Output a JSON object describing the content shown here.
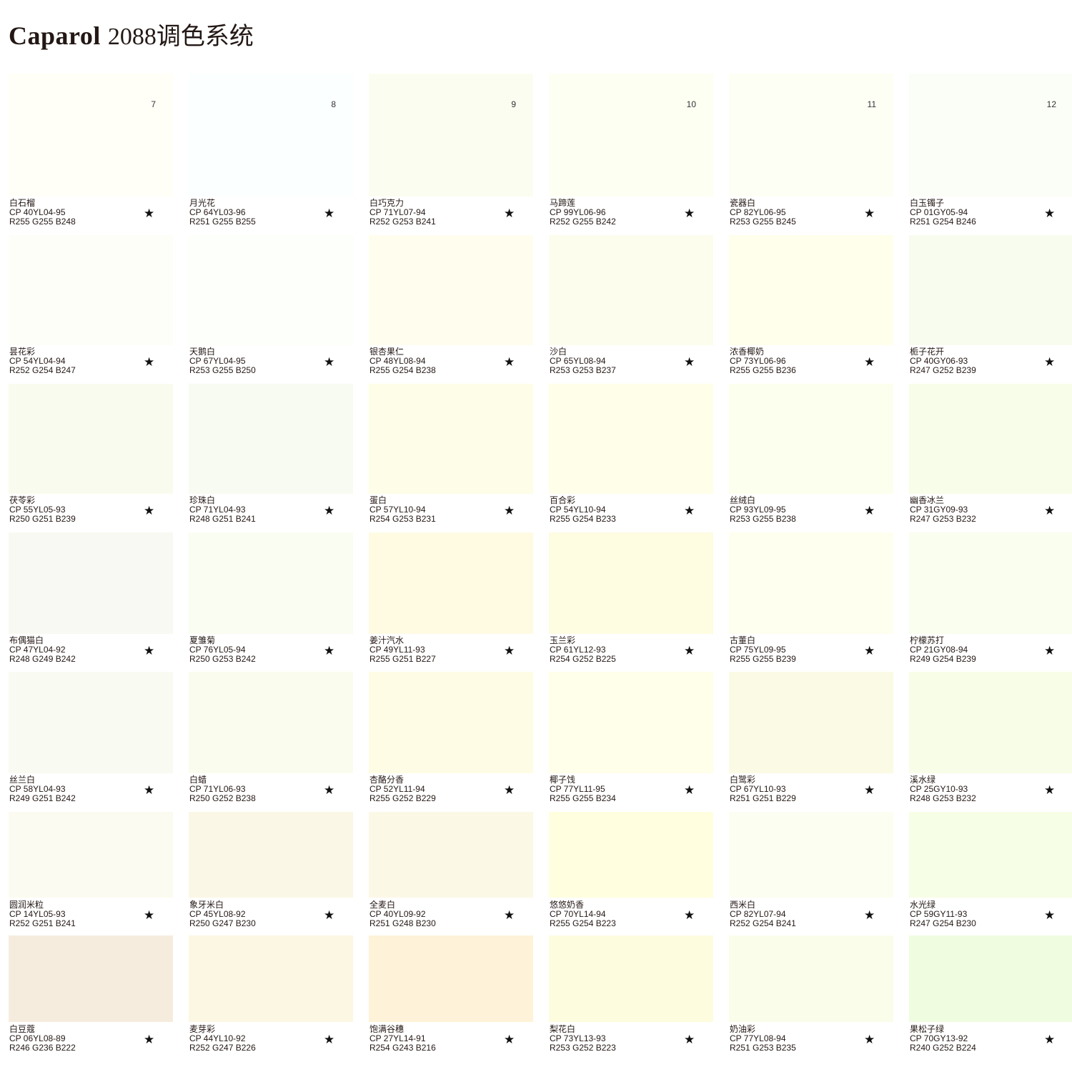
{
  "title": {
    "brand": "Caparol",
    "system": "2088调色系统"
  },
  "star_icon": "★",
  "column_numbers": [
    "7",
    "8",
    "9",
    "10",
    "11",
    "12"
  ],
  "rows": [
    [
      {
        "name": "白石榴",
        "cp": "CP  40YL04-95",
        "rgb": "R255 G255 B248",
        "color": "#fffff8"
      },
      {
        "name": "月光花",
        "cp": "CP  64YL03-96",
        "rgb": "R251 G255 B255",
        "color": "#fbffff"
      },
      {
        "name": "白巧克力",
        "cp": "CP  71YL07-94",
        "rgb": "R252 G253 B241",
        "color": "#fcfdf1"
      },
      {
        "name": "马蹄莲",
        "cp": "CP  99YL06-96",
        "rgb": "R252 G255 B242",
        "color": "#fcfff2"
      },
      {
        "name": "瓷器白",
        "cp": "CP  82YL06-95",
        "rgb": "R253 G255 B245",
        "color": "#fdfff5"
      },
      {
        "name": "白玉镯子",
        "cp": "CP  01GY05-94",
        "rgb": "R251 G254 B246",
        "color": "#fbfef6"
      }
    ],
    [
      {
        "name": "昙花彩",
        "cp": "CP  54YL04-94",
        "rgb": "R252 G254 B247",
        "color": "#fcfef7"
      },
      {
        "name": "天鹅白",
        "cp": "CP  67YL04-95",
        "rgb": "R253 G255 B250",
        "color": "#fdfffa"
      },
      {
        "name": "银杏果仁",
        "cp": "CP  48YL08-94",
        "rgb": "R255 G254 B238",
        "color": "#fffeee"
      },
      {
        "name": "沙白",
        "cp": "CP  65YL08-94",
        "rgb": "R253 G253 B237",
        "color": "#fdfded"
      },
      {
        "name": "浓香椰奶",
        "cp": "CP  73YL06-96",
        "rgb": "R255 G255 B236",
        "color": "#ffffec"
      },
      {
        "name": "栀子花开",
        "cp": "CP  40GY06-93",
        "rgb": "R247 G252 B239",
        "color": "#f7fcef"
      }
    ],
    [
      {
        "name": "茯苓彩",
        "cp": "CP  55YL05-93",
        "rgb": "R250 G251 B239",
        "color": "#fafbef"
      },
      {
        "name": "珍珠白",
        "cp": "CP  71YL04-93",
        "rgb": "R248 G251 B241",
        "color": "#f8fbf1"
      },
      {
        "name": "蛋白",
        "cp": "CP  57YL10-94",
        "rgb": "R254 G253 B231",
        "color": "#fefde7"
      },
      {
        "name": "百合彩",
        "cp": "CP  54YL10-94",
        "rgb": "R255 G254 B233",
        "color": "#fffee9"
      },
      {
        "name": "丝绒白",
        "cp": "CP  93YL09-95",
        "rgb": "R253 G255 B238",
        "color": "#fdffee"
      },
      {
        "name": "幽香冰兰",
        "cp": "CP  31GY09-93",
        "rgb": "R247 G253 B232",
        "color": "#f7fde8"
      }
    ],
    [
      {
        "name": "布偶猫白",
        "cp": "CP  47YL04-92",
        "rgb": "R248 G249 B242",
        "color": "#f8f9f2"
      },
      {
        "name": "夏雏菊",
        "cp": "CP  76YL05-94",
        "rgb": "R250 G253 B242",
        "color": "#fafdf2"
      },
      {
        "name": "姜汁汽水",
        "cp": "CP  49YL11-93",
        "rgb": "R255 G251 B227",
        "color": "#fffbe3"
      },
      {
        "name": "玉兰彩",
        "cp": "CP  61YL12-93",
        "rgb": "R254 G252 B225",
        "color": "#fefce1"
      },
      {
        "name": "古董白",
        "cp": "CP  75YL09-95",
        "rgb": "R255 G255 B239",
        "color": "#ffffef"
      },
      {
        "name": "柠檬苏打",
        "cp": "CP  21GY08-94",
        "rgb": "R249 G254 B239",
        "color": "#f9feef"
      }
    ],
    [
      {
        "name": "丝兰白",
        "cp": "CP  58YL04-93",
        "rgb": "R249 G251 B242",
        "color": "#f9fbf2"
      },
      {
        "name": "白蜡",
        "cp": "CP  71YL06-93",
        "rgb": "R250 G252 B238",
        "color": "#fafcee"
      },
      {
        "name": "杏酪分香",
        "cp": "CP  52YL11-94",
        "rgb": "R255 G252 B229",
        "color": "#fffce5"
      },
      {
        "name": "椰子饯",
        "cp": "CP  77YL11-95",
        "rgb": "R255 G255 B234",
        "color": "#ffffea"
      },
      {
        "name": "白鹭彩",
        "cp": "CP  67YL10-93",
        "rgb": "R251 G251 B229",
        "color": "#fbfbe5"
      },
      {
        "name": "溪水绿",
        "cp": "CP  25GY10-93",
        "rgb": "R248 G253 B232",
        "color": "#f8fde8"
      }
    ],
    [
      {
        "name": "圆润米粒",
        "cp": "CP  14YL05-93",
        "rgb": "R252 G251 B241",
        "color": "#fcfbf1"
      },
      {
        "name": "象牙米白",
        "cp": "CP  45YL08-92",
        "rgb": "R250 G247 B230",
        "color": "#faf7e6"
      },
      {
        "name": "全麦白",
        "cp": "CP  40YL09-92",
        "rgb": "R251 G248 B230",
        "color": "#fbf8e6"
      },
      {
        "name": "悠悠奶香",
        "cp": "CP  70YL14-94",
        "rgb": "R255 G254 B223",
        "color": "#fffedf"
      },
      {
        "name": "西米白",
        "cp": "CP  82YL07-94",
        "rgb": "R252 G254 B241",
        "color": "#fcfef1"
      },
      {
        "name": "水光绿",
        "cp": "CP  59GY11-93",
        "rgb": "R247 G254 B230",
        "color": "#f7fee6"
      }
    ],
    [
      {
        "name": "白豆蔻",
        "cp": "CP  06YL08-89",
        "rgb": "R246 G236 B222",
        "color": "#f6ecde"
      },
      {
        "name": "麦芽彩",
        "cp": "CP  44YL10-92",
        "rgb": "R252 G247 B226",
        "color": "#fcf7e2"
      },
      {
        "name": "饱满谷穗",
        "cp": "CP  27YL14-91",
        "rgb": "R254 G243 B216",
        "color": "#fef3d8"
      },
      {
        "name": "梨花白",
        "cp": "CP  73YL13-93",
        "rgb": "R253 G252 B223",
        "color": "#fdfcdf"
      },
      {
        "name": "奶油彩",
        "cp": "CP  77YL08-94",
        "rgb": "R251 G253 B235",
        "color": "#fbfdeb"
      },
      {
        "name": "果松子绿",
        "cp": "CP  70GY13-92",
        "rgb": "R240 G252 B224",
        "color": "#f0fce0"
      }
    ]
  ]
}
